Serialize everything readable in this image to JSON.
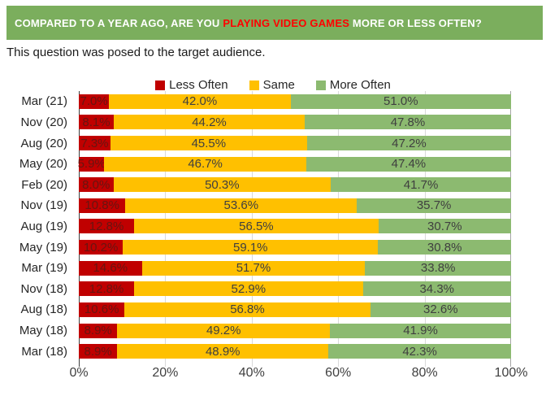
{
  "banner": {
    "text_prefix": "COMPARED TO A YEAR AGO, ARE YOU ",
    "text_highlight": "PLAYING VIDEO GAMES",
    "text_suffix": " MORE OR LESS OFTEN?",
    "bg_color": "#7BAE5D",
    "highlight_color": "#FF0000"
  },
  "subtitle": "This question was posed to the target audience.",
  "chart_data": {
    "type": "bar",
    "orientation": "horizontal",
    "stacked": true,
    "categories": [
      "Mar (21)",
      "Nov (20)",
      "Aug (20)",
      "May (20)",
      "Feb (20)",
      "Nov (19)",
      "Aug (19)",
      "May (19)",
      "Mar (19)",
      "Nov (18)",
      "Aug (18)",
      "May (18)",
      "Mar (18)"
    ],
    "series": [
      {
        "name": "Less Often",
        "color": "#C00000",
        "label_color": "#671511",
        "values": [
          7.0,
          8.1,
          7.3,
          5.9,
          8.0,
          10.8,
          12.8,
          10.2,
          14.6,
          12.8,
          10.6,
          8.9,
          8.9
        ]
      },
      {
        "name": "Same",
        "color": "#FFC000",
        "label_color": "#3F3F3F",
        "values": [
          42.0,
          44.2,
          45.5,
          46.7,
          50.3,
          53.6,
          56.5,
          59.1,
          51.7,
          52.9,
          56.8,
          49.2,
          48.9
        ]
      },
      {
        "name": "More Often",
        "color": "#8CBA70",
        "label_color": "#3F3F3F",
        "values": [
          51.0,
          47.8,
          47.2,
          47.4,
          41.7,
          35.7,
          30.7,
          30.8,
          33.8,
          34.3,
          32.6,
          41.9,
          42.3
        ]
      }
    ],
    "value_suffix": "%",
    "xlim": [
      0,
      100
    ],
    "x_ticks": [
      {
        "value": 0,
        "label": "0%"
      },
      {
        "value": 20,
        "label": "20%"
      },
      {
        "value": 40,
        "label": "40%"
      },
      {
        "value": 60,
        "label": "60%"
      },
      {
        "value": 80,
        "label": "80%"
      },
      {
        "value": 100,
        "label": "100%"
      }
    ],
    "grid": true,
    "legend_position": "top",
    "grid_color": "#D9D9D9",
    "axis_line_color": "#404040",
    "end_line_color": "#A6A6A6"
  }
}
